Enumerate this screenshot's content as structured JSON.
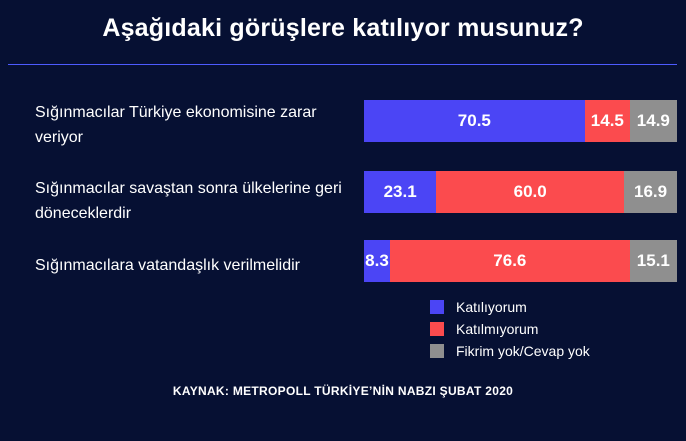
{
  "title": "Aşağıdaki görüşlere katılıyor musunuz?",
  "source": "KAYNAK: METROPOLL TÜRKİYE’NİN NABZI ŞUBAT 2020",
  "colors": {
    "background": "#061033",
    "rule": "#4d5bff",
    "katiliyorum": "#4b45f5",
    "katilmiyorum": "#fb4b4e",
    "fikrim_yok": "#8f8f8f"
  },
  "legend": [
    {
      "label": "Katılıyorum",
      "color": "#4b45f5"
    },
    {
      "label": "Katılmıyorum",
      "color": "#fb4b4e"
    },
    {
      "label": "Fikrim yok/Cevap yok",
      "color": "#8f8f8f"
    }
  ],
  "chart_data": {
    "type": "bar",
    "orientation": "horizontal",
    "stacked": true,
    "title": "Aşağıdaki görüşlere katılıyor musunuz?",
    "categories": [
      "Sığınmacılar Türkiye ekonomisine zarar veriyor",
      "Sığınmacılar savaştan sonra ülkelerine geri döneceklerdir",
      "Sığınmacılara vatandaşlık verilmelidir"
    ],
    "series": [
      {
        "name": "Katılıyorum",
        "values": [
          70.5,
          23.1,
          8.3
        ]
      },
      {
        "name": "Katılmıyorum",
        "values": [
          14.5,
          60.0,
          76.6
        ]
      },
      {
        "name": "Fikrim yok/Cevap yok",
        "values": [
          14.9,
          16.9,
          15.1
        ]
      }
    ],
    "value_labels": [
      [
        "70.5",
        "14.5",
        "14.9"
      ],
      [
        "23.1",
        "60.0",
        "16.9"
      ],
      [
        "8.3",
        "76.6",
        "15.1"
      ]
    ],
    "xlim": [
      0,
      100
    ],
    "grid": false,
    "legend_position": "bottom-right"
  }
}
